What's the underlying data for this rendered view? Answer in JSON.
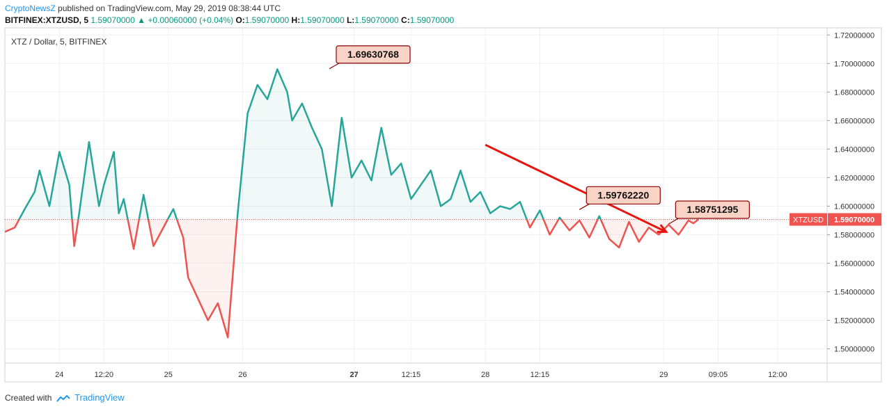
{
  "header": {
    "brand": "CryptoNewsZ",
    "published_text": " published on TradingView.com, May 29, 2019 08:38:44 UTC",
    "symbol": "BITFINEX:XTZUSD, 5",
    "last": "1.59070000",
    "change": "+0.00060000 (+0.04%)",
    "open_label": "O:",
    "open": "1.59070000",
    "high_label": "H:",
    "high": "1.59070000",
    "low_label": "L:",
    "low": "1.59070000",
    "close_label": "C:",
    "close": "1.59070000"
  },
  "footer": {
    "created_with": "Created with",
    "brand": "TradingView",
    "logo_icon": "tradingview-cloud-icon"
  },
  "colors": {
    "up": "#26a69a",
    "down": "#ef5350",
    "annotation_fill": "#f8d3c6",
    "annotation_border": "#8b0000",
    "arrow": "#e8140e",
    "price_tag": "#ef5350"
  },
  "chart_data": {
    "type": "area",
    "title": "XTZ / Dollar, 5, BITFINEX",
    "baseline": 1.5907,
    "ylim": [
      1.49,
      1.725
    ],
    "yticks": [
      "1.50000000",
      "1.52000000",
      "1.54000000",
      "1.56000000",
      "1.58000000",
      "1.60000000",
      "1.62000000",
      "1.64000000",
      "1.66000000",
      "1.68000000",
      "1.70000000",
      "1.72000000"
    ],
    "xticks": [
      {
        "label": "24",
        "t": 0.11,
        "bold": false
      },
      {
        "label": "12:20",
        "t": 0.2,
        "bold": false
      },
      {
        "label": "25",
        "t": 0.33,
        "bold": false
      },
      {
        "label": "26",
        "t": 0.48,
        "bold": false
      },
      {
        "label": "27",
        "t": 0.705,
        "bold": true
      },
      {
        "label": "12:15",
        "t": 0.82,
        "bold": false
      },
      {
        "label": "28",
        "t": 0.97,
        "bold": false
      },
      {
        "label": "12:15",
        "t": 1.08,
        "bold": false
      },
      {
        "label": "29",
        "t": 1.33,
        "bold": false
      },
      {
        "label": "09:05",
        "t": 1.44,
        "bold": false
      },
      {
        "label": "12:00",
        "t": 1.56,
        "bold": false
      }
    ],
    "x": [
      0.0,
      0.02,
      0.04,
      0.06,
      0.07,
      0.09,
      0.11,
      0.13,
      0.14,
      0.15,
      0.17,
      0.19,
      0.2,
      0.22,
      0.23,
      0.24,
      0.26,
      0.28,
      0.3,
      0.32,
      0.34,
      0.36,
      0.37,
      0.39,
      0.41,
      0.43,
      0.45,
      0.47,
      0.49,
      0.51,
      0.53,
      0.55,
      0.57,
      0.58,
      0.6,
      0.62,
      0.64,
      0.66,
      0.68,
      0.7,
      0.72,
      0.74,
      0.76,
      0.78,
      0.8,
      0.82,
      0.84,
      0.86,
      0.88,
      0.9,
      0.92,
      0.94,
      0.96,
      0.98,
      1.0,
      1.02,
      1.04,
      1.06,
      1.08,
      1.1,
      1.12,
      1.14,
      1.16,
      1.18,
      1.2,
      1.22,
      1.24,
      1.26,
      1.28,
      1.3,
      1.32,
      1.34,
      1.36,
      1.38,
      1.39,
      1.4
    ],
    "values": [
      1.582,
      1.585,
      1.598,
      1.61,
      1.625,
      1.6,
      1.638,
      1.615,
      1.572,
      1.595,
      1.645,
      1.6,
      1.615,
      1.638,
      1.595,
      1.605,
      1.57,
      1.608,
      1.572,
      1.585,
      1.598,
      1.578,
      1.55,
      1.535,
      1.52,
      1.532,
      1.508,
      1.595,
      1.665,
      1.685,
      1.675,
      1.696,
      1.68,
      1.66,
      1.672,
      1.655,
      1.64,
      1.6,
      1.662,
      1.62,
      1.632,
      1.618,
      1.655,
      1.622,
      1.63,
      1.605,
      1.615,
      1.625,
      1.6,
      1.605,
      1.625,
      1.603,
      1.61,
      1.595,
      1.6,
      1.598,
      1.603,
      1.585,
      1.597,
      1.58,
      1.592,
      1.583,
      1.59,
      1.578,
      1.593,
      1.577,
      1.571,
      1.589,
      1.575,
      1.585,
      1.58,
      1.587,
      1.58,
      1.59,
      1.588,
      1.5907
    ],
    "annotations": [
      {
        "label": "1.69630768",
        "value": 1.6963,
        "t": 0.655
      },
      {
        "label": "1.59762220",
        "value": 1.5976,
        "t": 1.16
      },
      {
        "label": "1.58751295",
        "value": 1.5875,
        "t": 1.34
      }
    ],
    "trend_line": {
      "from": {
        "t": 0.97,
        "value": 1.643
      },
      "to": {
        "t": 1.335,
        "value": 1.582
      }
    },
    "last_price_label": "XTZUSD",
    "last_price": "1.59070000"
  }
}
